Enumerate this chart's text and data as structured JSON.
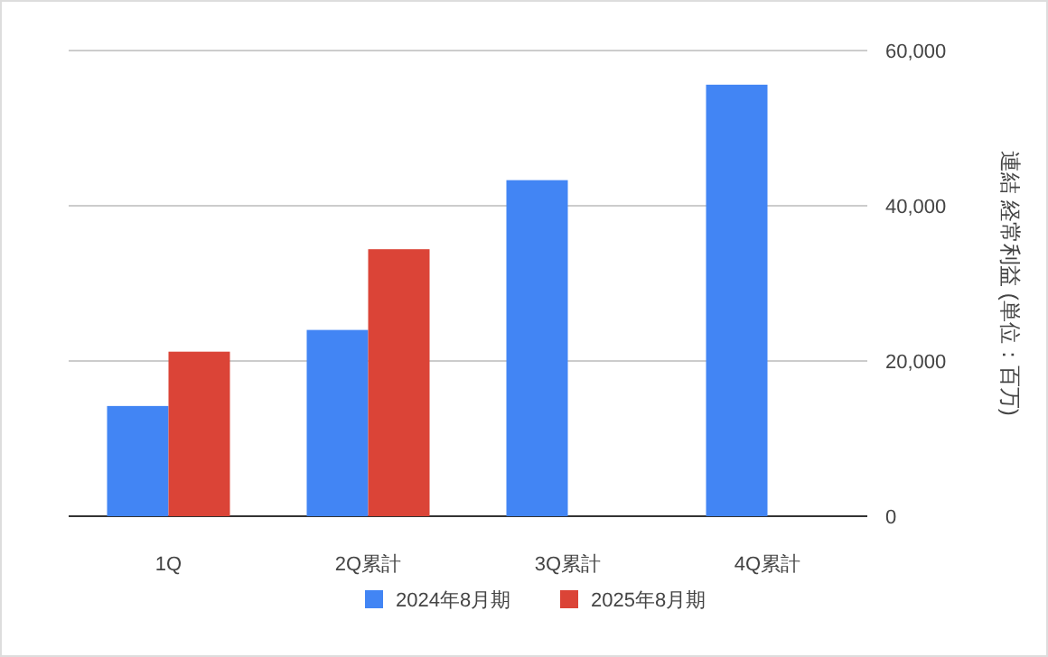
{
  "chart_data": {
    "type": "bar",
    "ylabel": "連結 経常利益 (単位：百万)",
    "categories": [
      "1Q",
      "2Q累計",
      "3Q累計",
      "4Q累計"
    ],
    "series": [
      {
        "name": "2024年8月期",
        "color": "#4285f4",
        "values": [
          14200,
          24000,
          43300,
          55600
        ]
      },
      {
        "name": "2025年8月期",
        "color": "#db4437",
        "values": [
          21200,
          34400,
          null,
          null
        ]
      }
    ],
    "ylim": [
      0,
      60000
    ],
    "yticks": [
      {
        "value": 0,
        "label": "0"
      },
      {
        "value": 20000,
        "label": "20,000"
      },
      {
        "value": 40000,
        "label": "40,000"
      },
      {
        "value": 60000,
        "label": "60,000"
      }
    ],
    "grid": "y",
    "legend": "bottom"
  }
}
